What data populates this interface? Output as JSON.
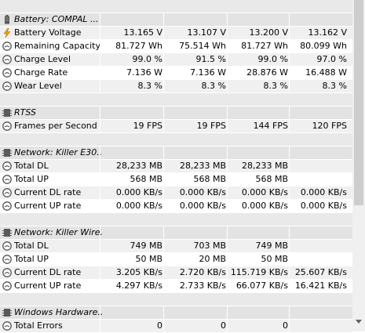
{
  "rows": [
    {
      "type": "spacer"
    },
    {
      "type": "header",
      "icon": "battery-icon",
      "name": "Battery: COMPAL ..."
    },
    {
      "type": "data",
      "icon": "lightning-icon",
      "name": "Battery Voltage",
      "values": [
        "13.165 V",
        "13.107 V",
        "13.200 V",
        "13.162 V"
      ]
    },
    {
      "type": "data",
      "icon": "gauge-icon",
      "name": "Remaining Capacity",
      "values": [
        "81.727 Wh",
        "75.514 Wh",
        "81.727 Wh",
        "80.099 Wh"
      ]
    },
    {
      "type": "data",
      "icon": "gauge-icon",
      "name": "Charge Level",
      "values": [
        "99.0 %",
        "91.5 %",
        "99.0 %",
        "97.0 %"
      ]
    },
    {
      "type": "data",
      "icon": "gauge-icon",
      "name": "Charge Rate",
      "values": [
        "7.136 W",
        "7.136 W",
        "28.876 W",
        "16.488 W"
      ]
    },
    {
      "type": "data",
      "icon": "gauge-icon",
      "name": "Wear Level",
      "values": [
        "8.3 %",
        "8.3 %",
        "8.3 %",
        "8.3 %"
      ]
    },
    {
      "type": "spacer"
    },
    {
      "type": "header",
      "icon": "chip-icon",
      "name": "RTSS"
    },
    {
      "type": "data",
      "icon": "gauge-icon",
      "name": "Frames per Second",
      "values": [
        "19 FPS",
        "19 FPS",
        "144 FPS",
        "120 FPS"
      ]
    },
    {
      "type": "spacer"
    },
    {
      "type": "header",
      "icon": "chip-icon",
      "name": "Network: Killer E30..."
    },
    {
      "type": "data",
      "icon": "gauge-icon",
      "name": "Total DL",
      "values": [
        "28,233 MB",
        "28,233 MB",
        "28,233 MB",
        ""
      ]
    },
    {
      "type": "data",
      "icon": "gauge-icon",
      "name": "Total UP",
      "values": [
        "568 MB",
        "568 MB",
        "568 MB",
        ""
      ]
    },
    {
      "type": "data",
      "icon": "gauge-icon",
      "name": "Current DL rate",
      "values": [
        "0.000 KB/s",
        "0.000 KB/s",
        "0.000 KB/s",
        "0.000 KB/s"
      ]
    },
    {
      "type": "data",
      "icon": "gauge-icon",
      "name": "Current UP rate",
      "values": [
        "0.000 KB/s",
        "0.000 KB/s",
        "0.000 KB/s",
        "0.000 KB/s"
      ]
    },
    {
      "type": "spacer"
    },
    {
      "type": "header",
      "icon": "chip-icon",
      "name": "Network: Killer Wire..."
    },
    {
      "type": "data",
      "icon": "gauge-icon",
      "name": "Total DL",
      "values": [
        "749 MB",
        "703 MB",
        "749 MB",
        ""
      ]
    },
    {
      "type": "data",
      "icon": "gauge-icon",
      "name": "Total UP",
      "values": [
        "50 MB",
        "20 MB",
        "50 MB",
        ""
      ]
    },
    {
      "type": "data",
      "icon": "gauge-icon",
      "name": "Current DL rate",
      "values": [
        "3.205 KB/s",
        "2.720 KB/s",
        "115.719 KB/s",
        "25.607 KB/s"
      ]
    },
    {
      "type": "data",
      "icon": "gauge-icon",
      "name": "Current UP rate",
      "values": [
        "4.297 KB/s",
        "2.733 KB/s",
        "66.077 KB/s",
        "16.421 KB/s"
      ]
    },
    {
      "type": "spacer"
    },
    {
      "type": "header",
      "icon": "chip-icon",
      "name": "Windows Hardware..."
    },
    {
      "type": "data",
      "icon": "gauge-icon",
      "name": "Total Errors",
      "values": [
        "0",
        "0",
        "0",
        ""
      ]
    }
  ],
  "colors": {
    "icon_gray": "#555555",
    "lightning": "#f0a000",
    "header_bg": "#e3e3e3",
    "row_alt": "#f0f0f0"
  }
}
